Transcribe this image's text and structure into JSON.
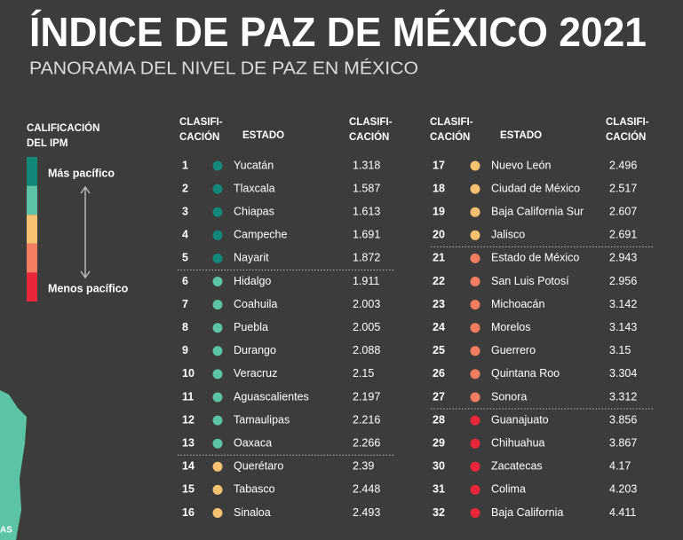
{
  "header": {
    "title": "ÍNDICE DE PAZ DE MÉXICO 2021",
    "subtitle": "PANORAMA DEL NIVEL DE PAZ EN MÉXICO"
  },
  "legend": {
    "title": [
      "CALIFICACIÓN",
      "DEL IPM"
    ],
    "top_label": "Más pacífico",
    "bottom_label": "Menos pacífico",
    "colors": [
      "#13877a",
      "#5cc4a4",
      "#f6c271",
      "#f27d60",
      "#e8283a"
    ]
  },
  "map_label": "AS",
  "table": {
    "headers": {
      "rank": [
        "CLASIFI-",
        "CACIÓN"
      ],
      "state": "ESTADO",
      "score": [
        "CLASIFI-",
        "CACIÓN"
      ]
    },
    "rows": [
      {
        "rank": 1,
        "state": "Yucatán",
        "score": 1.318,
        "color": "#13877a"
      },
      {
        "rank": 2,
        "state": "Tlaxcala",
        "score": 1.587,
        "color": "#13877a"
      },
      {
        "rank": 3,
        "state": "Chiapas",
        "score": 1.613,
        "color": "#13877a"
      },
      {
        "rank": 4,
        "state": "Campeche",
        "score": 1.691,
        "color": "#13877a"
      },
      {
        "rank": 5,
        "state": "Nayarit",
        "score": 1.872,
        "color": "#13877a"
      },
      {
        "rank": 6,
        "state": "Hidalgo",
        "score": 1.911,
        "color": "#5cc4a4"
      },
      {
        "rank": 7,
        "state": "Coahuila",
        "score": 2.003,
        "color": "#5cc4a4"
      },
      {
        "rank": 8,
        "state": "Puebla",
        "score": 2.005,
        "color": "#5cc4a4"
      },
      {
        "rank": 9,
        "state": "Durango",
        "score": 2.088,
        "color": "#5cc4a4"
      },
      {
        "rank": 10,
        "state": "Veracruz",
        "score": 2.15,
        "color": "#5cc4a4"
      },
      {
        "rank": 11,
        "state": "Aguascalientes",
        "score": 2.197,
        "color": "#5cc4a4"
      },
      {
        "rank": 12,
        "state": "Tamaulipas",
        "score": 2.216,
        "color": "#5cc4a4"
      },
      {
        "rank": 13,
        "state": "Oaxaca",
        "score": 2.266,
        "color": "#5cc4a4"
      },
      {
        "rank": 14,
        "state": "Querétaro",
        "score": 2.39,
        "color": "#f6c271"
      },
      {
        "rank": 15,
        "state": "Tabasco",
        "score": 2.448,
        "color": "#f6c271"
      },
      {
        "rank": 16,
        "state": "Sinaloa",
        "score": 2.493,
        "color": "#f6c271"
      },
      {
        "rank": 17,
        "state": "Nuevo León",
        "score": 2.496,
        "color": "#f6c271"
      },
      {
        "rank": 18,
        "state": "Ciudad de México",
        "score": 2.517,
        "color": "#f6c271"
      },
      {
        "rank": 19,
        "state": "Baja California Sur",
        "score": 2.607,
        "color": "#f6c271"
      },
      {
        "rank": 20,
        "state": "Jalisco",
        "score": 2.691,
        "color": "#f6c271"
      },
      {
        "rank": 21,
        "state": "Estado de México",
        "score": 2.943,
        "color": "#f27d60"
      },
      {
        "rank": 22,
        "state": "San Luis Potosí",
        "score": 2.956,
        "color": "#f27d60"
      },
      {
        "rank": 23,
        "state": "Michoacán",
        "score": 3.142,
        "color": "#f27d60"
      },
      {
        "rank": 24,
        "state": "Morelos",
        "score": 3.143,
        "color": "#f27d60"
      },
      {
        "rank": 25,
        "state": "Guerrero",
        "score": 3.15,
        "color": "#f27d60"
      },
      {
        "rank": 26,
        "state": "Quintana Roo",
        "score": 3.304,
        "color": "#f27d60"
      },
      {
        "rank": 27,
        "state": "Sonora",
        "score": 3.312,
        "color": "#f27d60"
      },
      {
        "rank": 28,
        "state": "Guanajuato",
        "score": 3.856,
        "color": "#e8283a"
      },
      {
        "rank": 29,
        "state": "Chihuahua",
        "score": 3.867,
        "color": "#e8283a"
      },
      {
        "rank": 30,
        "state": "Zacatecas",
        "score": 4.17,
        "color": "#e8283a"
      },
      {
        "rank": 31,
        "state": "Colima",
        "score": 4.203,
        "color": "#e8283a"
      },
      {
        "rank": 32,
        "state": "Baja California",
        "score": 4.411,
        "color": "#e8283a"
      }
    ]
  }
}
